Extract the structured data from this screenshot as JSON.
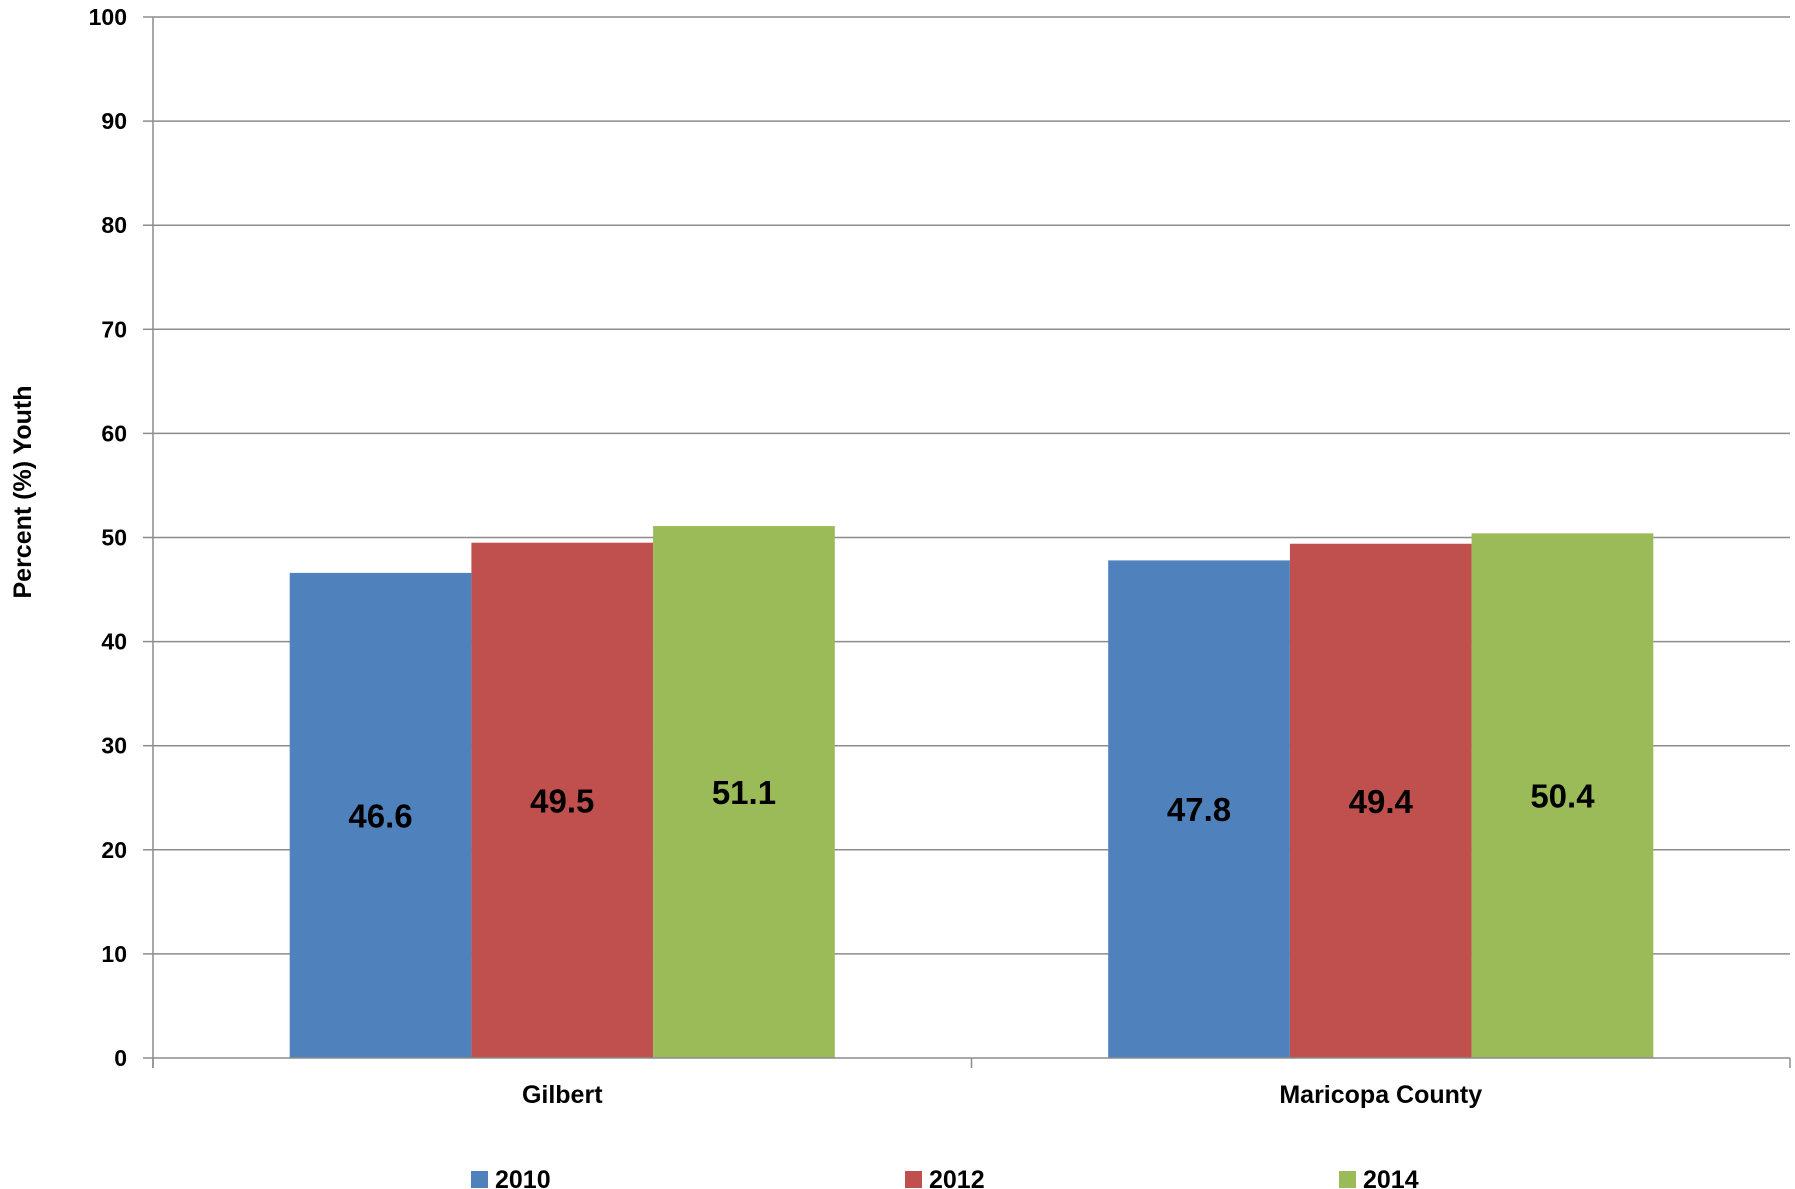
{
  "chart_data": {
    "type": "bar",
    "title": "",
    "xlabel": "",
    "ylabel": "Percent (%) Youth",
    "ylim": [
      0,
      100
    ],
    "yticks": [
      0,
      10,
      20,
      30,
      40,
      50,
      60,
      70,
      80,
      90,
      100
    ],
    "yticklabels": [
      "0",
      "10",
      "20",
      "30",
      "40",
      "50",
      "60",
      "70",
      "80",
      "90",
      "100"
    ],
    "grid": true,
    "legend_position": "bottom",
    "categories": [
      "Gilbert",
      "Maricopa County"
    ],
    "series": [
      {
        "name": "2010",
        "color": "#4F81BD",
        "values": [
          46.6,
          47.8
        ],
        "labels": [
          "46.6",
          "47.8"
        ]
      },
      {
        "name": "2012",
        "color": "#C0504D",
        "values": [
          49.5,
          49.4
        ],
        "labels": [
          "49.5",
          "49.4"
        ]
      },
      {
        "name": "2014",
        "color": "#9BBB59",
        "values": [
          51.1,
          50.4
        ],
        "labels": [
          "51.1",
          "50.4"
        ]
      }
    ]
  }
}
